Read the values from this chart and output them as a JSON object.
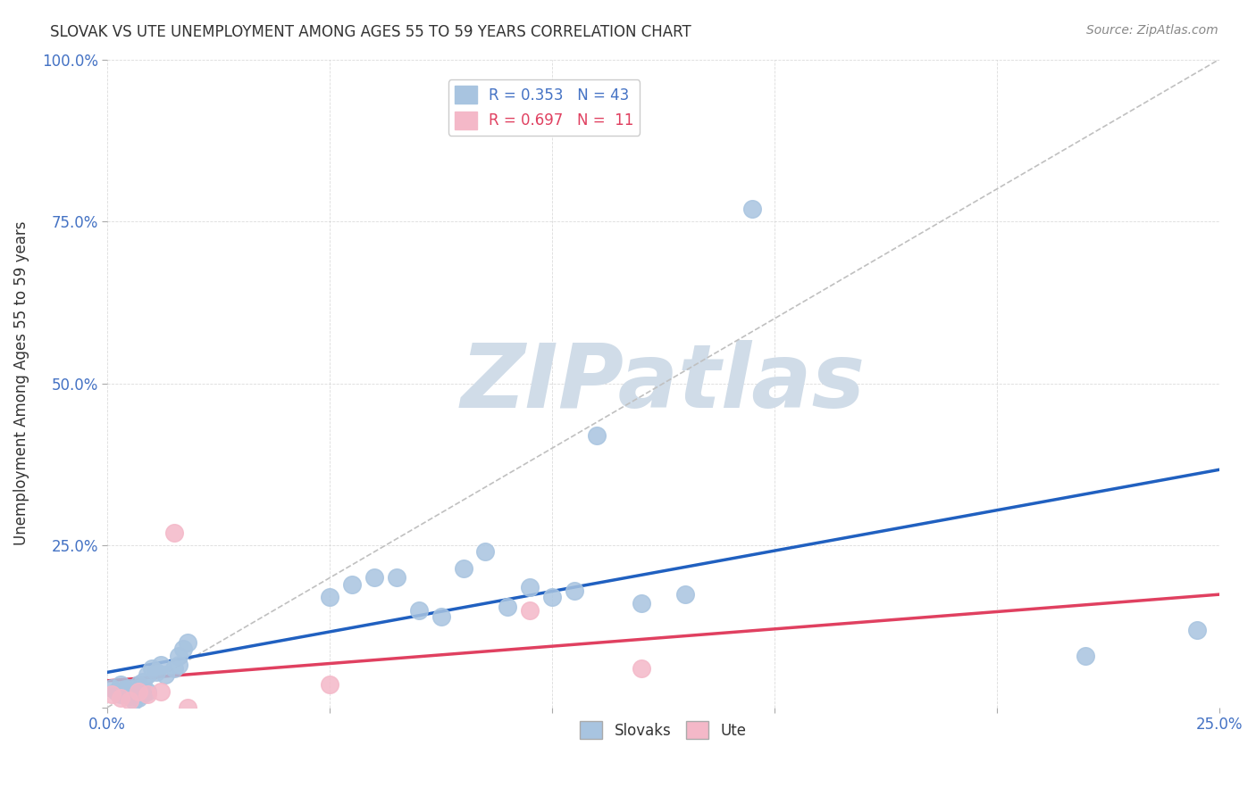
{
  "title": "SLOVAK VS UTE UNEMPLOYMENT AMONG AGES 55 TO 59 YEARS CORRELATION CHART",
  "source": "Source: ZipAtlas.com",
  "ylabel": "Unemployment Among Ages 55 to 59 years",
  "xlabel": "",
  "xlim": [
    0,
    0.25
  ],
  "ylim": [
    0,
    1.0
  ],
  "xticks": [
    0.0,
    0.05,
    0.1,
    0.15,
    0.2,
    0.25
  ],
  "yticks": [
    0.0,
    0.25,
    0.5,
    0.75,
    1.0
  ],
  "xticklabels": [
    "0.0%",
    "",
    "",
    "",
    "",
    "25.0%"
  ],
  "yticklabels": [
    "",
    "25.0%",
    "50.0%",
    "75.0%",
    "100.0%"
  ],
  "slovak_R": 0.353,
  "slovak_N": 43,
  "ute_R": 0.697,
  "ute_N": 11,
  "slovak_color": "#a8c4e0",
  "ute_color": "#f4b8c8",
  "slovak_line_color": "#2060c0",
  "ute_line_color": "#e04060",
  "diag_line_color": "#c0c0c0",
  "background_color": "#ffffff",
  "slovak_x": [
    0.001,
    0.002,
    0.003,
    0.003,
    0.004,
    0.004,
    0.005,
    0.005,
    0.006,
    0.006,
    0.007,
    0.007,
    0.008,
    0.008,
    0.009,
    0.009,
    0.01,
    0.011,
    0.012,
    0.013,
    0.015,
    0.016,
    0.016,
    0.017,
    0.018,
    0.05,
    0.055,
    0.06,
    0.065,
    0.07,
    0.075,
    0.08,
    0.085,
    0.09,
    0.095,
    0.1,
    0.105,
    0.11,
    0.12,
    0.13,
    0.145,
    0.22,
    0.245
  ],
  "slovak_y": [
    0.03,
    0.025,
    0.02,
    0.035,
    0.028,
    0.022,
    0.018,
    0.03,
    0.025,
    0.01,
    0.035,
    0.015,
    0.04,
    0.02,
    0.05,
    0.025,
    0.06,
    0.055,
    0.065,
    0.05,
    0.06,
    0.065,
    0.08,
    0.09,
    0.1,
    0.17,
    0.19,
    0.2,
    0.2,
    0.15,
    0.14,
    0.215,
    0.24,
    0.155,
    0.185,
    0.17,
    0.18,
    0.42,
    0.16,
    0.175,
    0.77,
    0.08,
    0.12
  ],
  "ute_x": [
    0.001,
    0.003,
    0.005,
    0.007,
    0.009,
    0.012,
    0.015,
    0.018,
    0.05,
    0.095,
    0.12
  ],
  "ute_y": [
    0.02,
    0.015,
    0.01,
    0.025,
    0.02,
    0.025,
    0.27,
    0.0,
    0.035,
    0.15,
    0.06
  ],
  "watermark": "ZIPatlas",
  "watermark_color": "#d0dce8",
  "legend_loc": "upper left"
}
